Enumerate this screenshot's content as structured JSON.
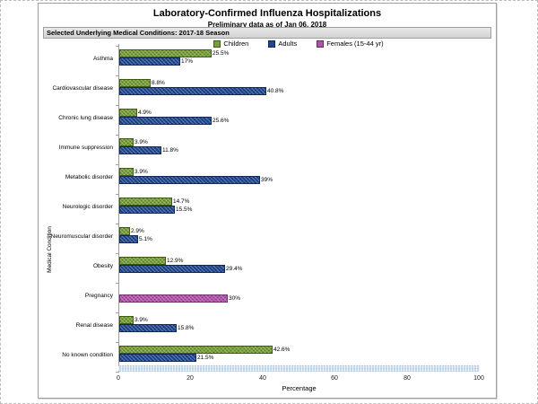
{
  "figure": {
    "title": "Laboratory-Confirmed Influenza Hospitalizations",
    "subtitle": "Preliminary data as of Jan 06, 2018",
    "section_header": "Selected Underlying Medical Conditions: 2017-18 Season"
  },
  "legend": [
    {
      "key": "children",
      "label": "Children",
      "color": "#76A034"
    },
    {
      "key": "adults",
      "label": "Adults",
      "color": "#1F4690"
    },
    {
      "key": "females",
      "label": "Females (15-44 yr)",
      "color": "#B351AC"
    }
  ],
  "chart_data": {
    "type": "bar",
    "orientation": "horizontal",
    "title": "Laboratory-Confirmed Influenza Hospitalizations",
    "subtitle": "Preliminary data as of Jan 06, 2018",
    "xlabel": "Percentage",
    "ylabel": "Medical Condition",
    "xlim": [
      0,
      100
    ],
    "x_ticks": [
      0,
      20,
      40,
      60,
      80,
      100
    ],
    "grid": false,
    "legend_position": "top",
    "categories": [
      "Asthma",
      "Cardiovascular disease",
      "Chronic lung disease",
      "Immune suppression",
      "Metabolic disorder",
      "Neurologic disorder",
      "Neuromuscular disorder",
      "Obesity",
      "Pregnancy",
      "Renal disease",
      "No known condition"
    ],
    "series": [
      {
        "name": "Children",
        "key": "children",
        "color": "#76A034",
        "values": [
          25.5,
          8.8,
          4.9,
          3.9,
          3.9,
          14.7,
          2.9,
          12.9,
          null,
          3.9,
          42.6
        ],
        "value_labels": [
          "25.5%",
          "8.8%",
          "4.9%",
          "3.9%",
          "3.9%",
          "14.7%",
          "2.9%",
          "12.9%",
          null,
          "3.9%",
          "42.6%"
        ]
      },
      {
        "name": "Adults",
        "key": "adults",
        "color": "#1F4690",
        "values": [
          17,
          40.8,
          25.6,
          11.8,
          39,
          15.5,
          5.1,
          29.4,
          null,
          15.8,
          21.5
        ],
        "value_labels": [
          "17%",
          "40.8%",
          "25.6%",
          "11.8%",
          "39%",
          "15.5%",
          "5.1%",
          "29.4%",
          null,
          "15.8%",
          "21.5%"
        ]
      },
      {
        "name": "Females (15-44 yr)",
        "key": "females",
        "color": "#B351AC",
        "values": [
          null,
          null,
          null,
          null,
          null,
          null,
          null,
          null,
          30,
          null,
          null
        ],
        "value_labels": [
          null,
          null,
          null,
          null,
          null,
          null,
          null,
          null,
          "30%",
          null,
          null
        ]
      }
    ]
  }
}
